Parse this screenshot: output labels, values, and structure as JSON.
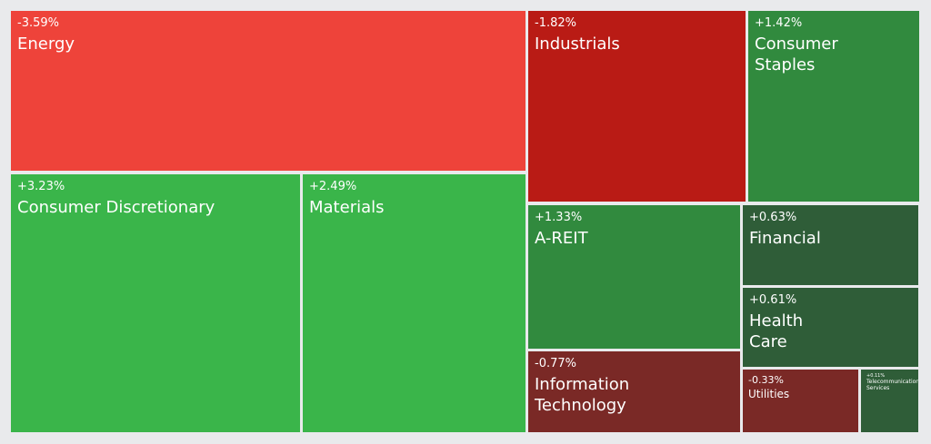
{
  "chart_data": {
    "type": "treemap",
    "sectors": [
      {
        "key": "energy",
        "name": "Energy",
        "change": "-3.59%",
        "value": -3.59
      },
      {
        "key": "consumer-discretionary",
        "name": "Consumer Discretionary",
        "change": "+3.23%",
        "value": 3.23
      },
      {
        "key": "materials",
        "name": "Materials",
        "change": "+2.49%",
        "value": 2.49
      },
      {
        "key": "industrials",
        "name": "Industrials",
        "change": "-1.82%",
        "value": -1.82
      },
      {
        "key": "consumer-staples",
        "name": "Consumer\nStaples",
        "change": "+1.42%",
        "value": 1.42
      },
      {
        "key": "a-reit",
        "name": "A-REIT",
        "change": "+1.33%",
        "value": 1.33
      },
      {
        "key": "financial",
        "name": "Financial",
        "change": "+0.63%",
        "value": 0.63
      },
      {
        "key": "health-care",
        "name": "Health\nCare",
        "change": "+0.61%",
        "value": 0.61
      },
      {
        "key": "information-technology",
        "name": "Information\nTechnology",
        "change": "-0.77%",
        "value": -0.77
      },
      {
        "key": "utilities",
        "name": "Utilities",
        "change": "-0.33%",
        "value": -0.33
      },
      {
        "key": "telecommunications-services",
        "name": "Telecommunications\nServices",
        "change": "+0.11%",
        "value": 0.11
      }
    ]
  }
}
